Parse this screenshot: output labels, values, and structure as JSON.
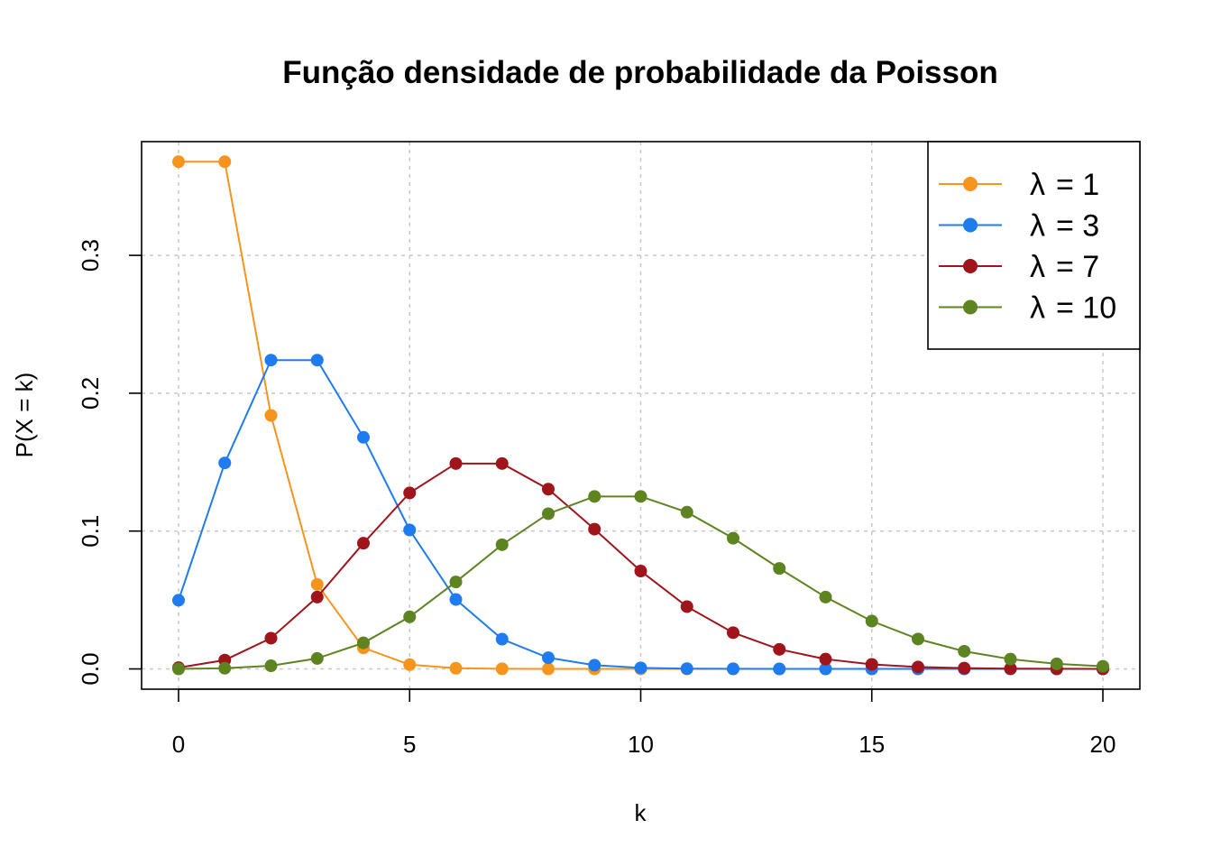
{
  "chart_data": {
    "type": "line",
    "title": "Função densidade de probabilidade da Poisson",
    "xlabel": "k",
    "ylabel": "P(X = k)",
    "xlim": [
      -0.8,
      20.8
    ],
    "ylim": [
      -0.0147,
      0.3825
    ],
    "x_ticks": [
      0,
      5,
      10,
      15,
      20
    ],
    "x_tick_labels": [
      "0",
      "5",
      "10",
      "15",
      "20"
    ],
    "y_ticks": [
      0.0,
      0.1,
      0.2,
      0.3
    ],
    "y_tick_labels": [
      "0.0",
      "0.1",
      "0.2",
      "0.3"
    ],
    "grid": true,
    "legend_position": "top-right",
    "x": [
      0,
      1,
      2,
      3,
      4,
      5,
      6,
      7,
      8,
      9,
      10,
      11,
      12,
      13,
      14,
      15,
      16,
      17,
      18,
      19,
      20
    ],
    "series": [
      {
        "name": "λ = 1",
        "legend_symbol": "λ",
        "legend_value": "= 1",
        "color": "#F7941D",
        "values": [
          0.3679,
          0.3679,
          0.1839,
          0.0613,
          0.0153,
          0.0031,
          0.0005,
          0.0001,
          0.0,
          0.0,
          0.0,
          0.0,
          0.0,
          0.0,
          0.0,
          0.0,
          0.0,
          0.0,
          0.0,
          0.0,
          0.0
        ]
      },
      {
        "name": "λ = 3",
        "legend_symbol": "λ",
        "legend_value": "= 3",
        "color": "#1E7BF0",
        "values": [
          0.0498,
          0.1494,
          0.224,
          0.224,
          0.168,
          0.1008,
          0.0504,
          0.0216,
          0.0081,
          0.0027,
          0.0008,
          0.0002,
          0.0001,
          0.0,
          0.0,
          0.0,
          0.0,
          0.0,
          0.0,
          0.0,
          0.0
        ]
      },
      {
        "name": "λ = 7",
        "legend_symbol": "λ",
        "legend_value": "= 7",
        "color": "#A0141C",
        "values": [
          0.0009,
          0.0064,
          0.0223,
          0.0521,
          0.0912,
          0.1277,
          0.149,
          0.149,
          0.1304,
          0.1014,
          0.071,
          0.0452,
          0.0263,
          0.0142,
          0.0071,
          0.0033,
          0.0014,
          0.0006,
          0.0002,
          0.0001,
          0.0
        ]
      },
      {
        "name": "λ = 10",
        "legend_symbol": "λ",
        "legend_value": "= 10",
        "color": "#5E8321",
        "values": [
          0.0,
          0.0005,
          0.0023,
          0.0076,
          0.0189,
          0.0378,
          0.0631,
          0.0901,
          0.1126,
          0.1251,
          0.1251,
          0.1137,
          0.0948,
          0.0729,
          0.0521,
          0.0347,
          0.0217,
          0.0128,
          0.0071,
          0.0037,
          0.0019
        ]
      }
    ]
  }
}
